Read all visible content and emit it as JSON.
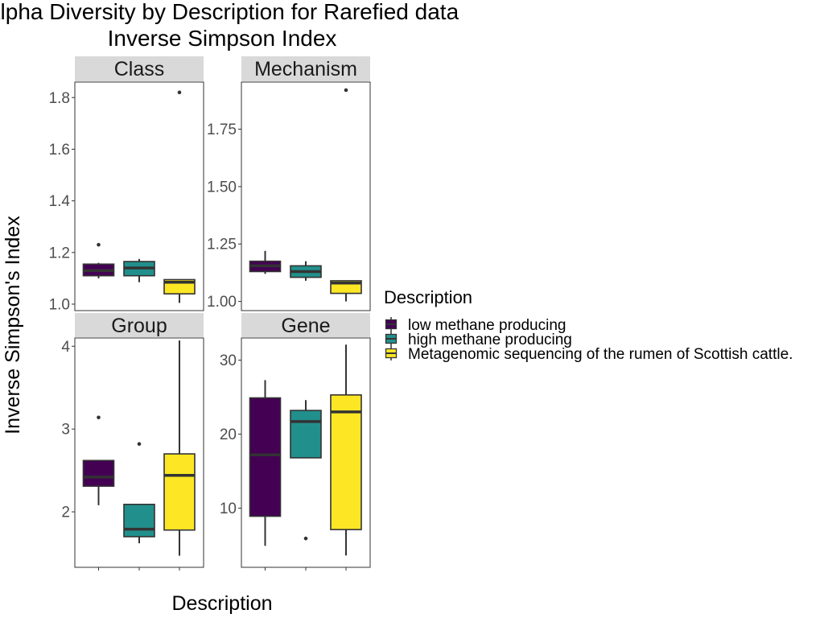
{
  "chart_data": {
    "type": "box",
    "title": "Alpha Diversity by Description for Rarefied data",
    "subtitle": "Inverse Simpson Index",
    "xlabel": "Description",
    "ylabel": "Inverse Simpson's Index",
    "legend": {
      "title": "Description",
      "placement": "right",
      "entries": [
        {
          "label": "low methane producing",
          "color": "#440154"
        },
        {
          "label": "high methane producing",
          "color": "#21908C"
        },
        {
          "label": "Metagenomic sequencing of the rumen of Scottish cattle.",
          "color": "#FDE725"
        }
      ]
    },
    "facets": [
      {
        "name": "Class",
        "ylim": [
          0.975,
          1.86
        ],
        "yticks": [
          {
            "v": 1.0,
            "label": "1.0"
          },
          {
            "v": 1.2,
            "label": "1.2"
          },
          {
            "v": 1.4,
            "label": "1.4"
          },
          {
            "v": 1.6,
            "label": "1.6"
          },
          {
            "v": 1.8,
            "label": "1.8"
          }
        ],
        "boxes": [
          {
            "min": 1.1,
            "q1": 1.11,
            "median": 1.13,
            "q3": 1.155,
            "max": 1.16,
            "outliers": [
              1.23
            ]
          },
          {
            "min": 1.085,
            "q1": 1.11,
            "median": 1.14,
            "q3": 1.165,
            "max": 1.175,
            "outliers": []
          },
          {
            "min": 1.005,
            "q1": 1.04,
            "median": 1.085,
            "q3": 1.095,
            "max": 1.095,
            "outliers": [
              1.82
            ]
          }
        ]
      },
      {
        "name": "Mechanism",
        "ylim": [
          0.96,
          1.955
        ],
        "yticks": [
          {
            "v": 1.0,
            "label": "1.00"
          },
          {
            "v": 1.25,
            "label": "1.25"
          },
          {
            "v": 1.5,
            "label": "1.50"
          },
          {
            "v": 1.75,
            "label": "1.75"
          }
        ],
        "boxes": [
          {
            "min": 1.12,
            "q1": 1.13,
            "median": 1.155,
            "q3": 1.175,
            "max": 1.22,
            "outliers": []
          },
          {
            "min": 1.09,
            "q1": 1.105,
            "median": 1.13,
            "q3": 1.155,
            "max": 1.175,
            "outliers": []
          },
          {
            "min": 1.0,
            "q1": 1.035,
            "median": 1.08,
            "q3": 1.09,
            "max": 1.09,
            "outliers": [
              1.92
            ]
          }
        ]
      },
      {
        "name": "Group",
        "ylim": [
          1.33,
          4.1
        ],
        "yticks": [
          {
            "v": 2,
            "label": "2"
          },
          {
            "v": 3,
            "label": "3"
          },
          {
            "v": 4,
            "label": "4"
          }
        ],
        "boxes": [
          {
            "min": 2.08,
            "q1": 2.31,
            "median": 2.42,
            "q3": 2.62,
            "max": 2.62,
            "outliers": [
              3.14
            ]
          },
          {
            "min": 1.62,
            "q1": 1.7,
            "median": 1.79,
            "q3": 2.09,
            "max": 2.09,
            "outliers": [
              2.82
            ]
          },
          {
            "min": 1.47,
            "q1": 1.78,
            "median": 2.44,
            "q3": 2.7,
            "max": 4.07,
            "outliers": []
          }
        ]
      },
      {
        "name": "Gene",
        "ylim": [
          2.0,
          33.0
        ],
        "yticks": [
          {
            "v": 10,
            "label": "10"
          },
          {
            "v": 20,
            "label": "20"
          },
          {
            "v": 30,
            "label": "30"
          }
        ],
        "boxes": [
          {
            "min": 4.9,
            "q1": 8.9,
            "median": 17.2,
            "q3": 24.9,
            "max": 27.3,
            "outliers": []
          },
          {
            "min": 16.8,
            "q1": 16.8,
            "median": 21.7,
            "q3": 23.2,
            "max": 24.6,
            "outliers": [
              5.9
            ]
          },
          {
            "min": 3.6,
            "q1": 7.1,
            "median": 23.0,
            "q3": 25.3,
            "max": 32.1,
            "outliers": []
          }
        ]
      }
    ]
  }
}
